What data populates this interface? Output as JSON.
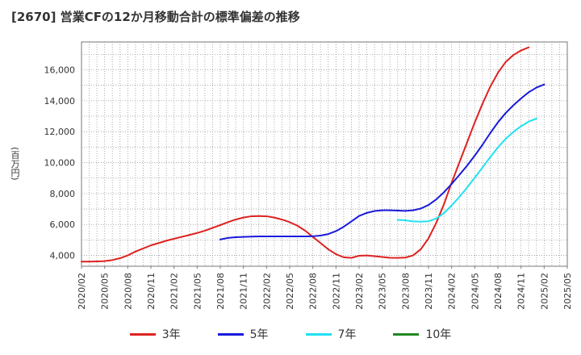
{
  "chart_data": {
    "type": "line",
    "title": "[2670]  営業CFの12か月移動合計の標準偏差の推移",
    "ylabel": "(百万円)",
    "ylim": [
      3300,
      17800
    ],
    "yticks": [
      4000,
      6000,
      8000,
      10000,
      12000,
      14000,
      16000
    ],
    "ytick_labels": [
      "4,000",
      "6,000",
      "8,000",
      "10,000",
      "12,000",
      "14,000",
      "16,000"
    ],
    "xticks": [
      "2020/02",
      "2020/05",
      "2020/08",
      "2020/11",
      "2021/02",
      "2021/05",
      "2021/08",
      "2021/11",
      "2022/02",
      "2022/05",
      "2022/08",
      "2022/11",
      "2023/02",
      "2023/05",
      "2023/08",
      "2023/11",
      "2024/02",
      "2024/05",
      "2024/08",
      "2024/11",
      "2025/02",
      "2025/05"
    ],
    "grid": true,
    "legend_position": "bottom",
    "series": [
      {
        "name": "3年",
        "color": "#dd2222",
        "points": [
          [
            "2020/02",
            3600
          ],
          [
            "2020/03",
            3600
          ],
          [
            "2020/04",
            3610
          ],
          [
            "2020/05",
            3630
          ],
          [
            "2020/06",
            3700
          ],
          [
            "2020/07",
            3820
          ],
          [
            "2020/08",
            4000
          ],
          [
            "2020/09",
            4250
          ],
          [
            "2020/10",
            4450
          ],
          [
            "2020/11",
            4650
          ],
          [
            "2020/12",
            4800
          ],
          [
            "2021/01",
            4950
          ],
          [
            "2021/02",
            5080
          ],
          [
            "2021/03",
            5200
          ],
          [
            "2021/04",
            5320
          ],
          [
            "2021/05",
            5450
          ],
          [
            "2021/06",
            5600
          ],
          [
            "2021/07",
            5780
          ],
          [
            "2021/08",
            5960
          ],
          [
            "2021/09",
            6150
          ],
          [
            "2021/10",
            6320
          ],
          [
            "2021/11",
            6450
          ],
          [
            "2021/12",
            6530
          ],
          [
            "2022/01",
            6550
          ],
          [
            "2022/02",
            6530
          ],
          [
            "2022/03",
            6450
          ],
          [
            "2022/04",
            6320
          ],
          [
            "2022/05",
            6150
          ],
          [
            "2022/06",
            5920
          ],
          [
            "2022/07",
            5600
          ],
          [
            "2022/08",
            5200
          ],
          [
            "2022/09",
            4800
          ],
          [
            "2022/10",
            4400
          ],
          [
            "2022/11",
            4080
          ],
          [
            "2022/12",
            3880
          ],
          [
            "2023/01",
            3840
          ],
          [
            "2023/02",
            3980
          ],
          [
            "2023/03",
            4000
          ],
          [
            "2023/04",
            3950
          ],
          [
            "2023/05",
            3900
          ],
          [
            "2023/06",
            3850
          ],
          [
            "2023/07",
            3840
          ],
          [
            "2023/08",
            3860
          ],
          [
            "2023/09",
            4000
          ],
          [
            "2023/10",
            4400
          ],
          [
            "2023/11",
            5100
          ],
          [
            "2023/12",
            6100
          ],
          [
            "2024/01",
            7300
          ],
          [
            "2024/02",
            8700
          ],
          [
            "2024/03",
            10000
          ],
          [
            "2024/04",
            11300
          ],
          [
            "2024/05",
            12600
          ],
          [
            "2024/06",
            13800
          ],
          [
            "2024/07",
            14900
          ],
          [
            "2024/08",
            15800
          ],
          [
            "2024/09",
            16500
          ],
          [
            "2024/10",
            16950
          ],
          [
            "2024/11",
            17250
          ],
          [
            "2024/12",
            17450
          ]
        ]
      },
      {
        "name": "5年",
        "color": "#1a1adb",
        "points": [
          [
            "2021/08",
            5030
          ],
          [
            "2021/09",
            5130
          ],
          [
            "2021/10",
            5180
          ],
          [
            "2021/11",
            5200
          ],
          [
            "2021/12",
            5220
          ],
          [
            "2022/01",
            5230
          ],
          [
            "2022/02",
            5230
          ],
          [
            "2022/03",
            5230
          ],
          [
            "2022/04",
            5230
          ],
          [
            "2022/05",
            5230
          ],
          [
            "2022/06",
            5230
          ],
          [
            "2022/07",
            5230
          ],
          [
            "2022/08",
            5240
          ],
          [
            "2022/09",
            5280
          ],
          [
            "2022/10",
            5380
          ],
          [
            "2022/11",
            5570
          ],
          [
            "2022/12",
            5850
          ],
          [
            "2023/01",
            6200
          ],
          [
            "2023/02",
            6550
          ],
          [
            "2023/03",
            6750
          ],
          [
            "2023/04",
            6870
          ],
          [
            "2023/05",
            6920
          ],
          [
            "2023/06",
            6920
          ],
          [
            "2023/07",
            6900
          ],
          [
            "2023/08",
            6880
          ],
          [
            "2023/09",
            6920
          ],
          [
            "2023/10",
            7030
          ],
          [
            "2023/11",
            7260
          ],
          [
            "2023/12",
            7620
          ],
          [
            "2024/01",
            8080
          ],
          [
            "2024/02",
            8620
          ],
          [
            "2024/03",
            9200
          ],
          [
            "2024/04",
            9800
          ],
          [
            "2024/05",
            10450
          ],
          [
            "2024/06",
            11150
          ],
          [
            "2024/07",
            11900
          ],
          [
            "2024/08",
            12600
          ],
          [
            "2024/09",
            13200
          ],
          [
            "2024/10",
            13700
          ],
          [
            "2024/11",
            14150
          ],
          [
            "2024/12",
            14550
          ],
          [
            "2025/01",
            14850
          ],
          [
            "2025/02",
            15050
          ]
        ]
      },
      {
        "name": "7年",
        "color": "#22e0f0",
        "points": [
          [
            "2023/07",
            6300
          ],
          [
            "2023/08",
            6270
          ],
          [
            "2023/09",
            6200
          ],
          [
            "2023/10",
            6180
          ],
          [
            "2023/11",
            6210
          ],
          [
            "2023/12",
            6380
          ],
          [
            "2024/01",
            6730
          ],
          [
            "2024/02",
            7230
          ],
          [
            "2024/03",
            7780
          ],
          [
            "2024/04",
            8380
          ],
          [
            "2024/05",
            9030
          ],
          [
            "2024/06",
            9680
          ],
          [
            "2024/07",
            10350
          ],
          [
            "2024/08",
            10980
          ],
          [
            "2024/09",
            11530
          ],
          [
            "2024/10",
            11980
          ],
          [
            "2024/11",
            12350
          ],
          [
            "2024/12",
            12650
          ],
          [
            "2025/01",
            12850
          ]
        ]
      },
      {
        "name": "10年",
        "color": "#228822",
        "points": []
      }
    ]
  }
}
